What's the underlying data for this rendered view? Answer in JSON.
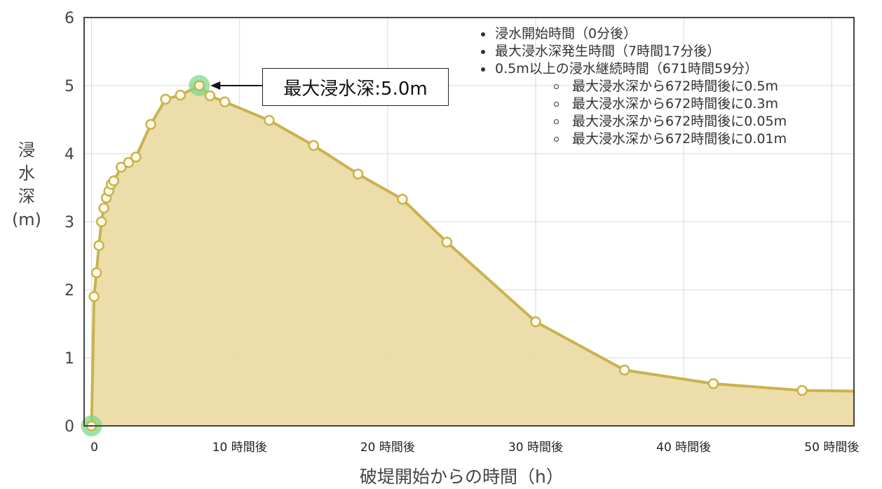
{
  "chart_data": {
    "type": "area",
    "xlabel": "破堤開始からの時間（h）",
    "ylabel": "浸水深(m)",
    "ylabel_lines": [
      "浸",
      "水",
      "深",
      "(m)"
    ],
    "xlim": [
      -0.5,
      51.5
    ],
    "ylim": [
      0,
      6
    ],
    "x_ticks": [
      {
        "value": 0,
        "label": "0"
      },
      {
        "value": 10,
        "label": "10 時間後"
      },
      {
        "value": 20,
        "label": "20 時間後"
      },
      {
        "value": 30,
        "label": "30 時間後"
      },
      {
        "value": 40,
        "label": "40 時間後"
      },
      {
        "value": 50,
        "label": "50 時間後"
      }
    ],
    "y_ticks": [
      0,
      1,
      2,
      3,
      4,
      5,
      6
    ],
    "grid": true,
    "series": [
      {
        "color": "#c9b34e",
        "fill": "#ecdba6",
        "points": [
          [
            0,
            0
          ],
          [
            0.17,
            1.9
          ],
          [
            0.33,
            2.25
          ],
          [
            0.5,
            2.65
          ],
          [
            0.67,
            3.0
          ],
          [
            0.83,
            3.2
          ],
          [
            1.0,
            3.35
          ],
          [
            1.17,
            3.45
          ],
          [
            1.33,
            3.55
          ],
          [
            1.5,
            3.6
          ],
          [
            2.0,
            3.8
          ],
          [
            2.5,
            3.87
          ],
          [
            3.0,
            3.95
          ],
          [
            4.0,
            4.43
          ],
          [
            5.0,
            4.8
          ],
          [
            6.0,
            4.86
          ],
          [
            7.28,
            5.0
          ],
          [
            8.0,
            4.85
          ],
          [
            9.0,
            4.76
          ],
          [
            12.0,
            4.49
          ],
          [
            15.0,
            4.12
          ],
          [
            18.0,
            3.7
          ],
          [
            21.0,
            3.33
          ],
          [
            24.0,
            2.7
          ],
          [
            30.0,
            1.53
          ],
          [
            36.0,
            0.82
          ],
          [
            42.0,
            0.62
          ],
          [
            48.0,
            0.52
          ],
          [
            51.5,
            0.51
          ]
        ],
        "highlight_points": [
          [
            0,
            0
          ],
          [
            7.28,
            5.0
          ]
        ],
        "highlight_color": "#7ed98a"
      }
    ],
    "annotation": {
      "text": "最大浸水深:5.0m",
      "x": 7.28,
      "y": 5.0
    },
    "legend": {
      "position": "top-right",
      "items": [
        {
          "level": 1,
          "text": "浸水開始時間（0分後）"
        },
        {
          "level": 1,
          "text": "最大浸水深発生時間（7時間17分後）"
        },
        {
          "level": 1,
          "text": "0.5m以上の浸水継続時間（671時間59分）"
        },
        {
          "level": 2,
          "text": "最大浸水深から672時間後に0.5m"
        },
        {
          "level": 2,
          "text": "最大浸水深から672時間後に0.3m"
        },
        {
          "level": 2,
          "text": "最大浸水深から672時間後に0.05m"
        },
        {
          "level": 2,
          "text": "最大浸水深から672時間後に0.01m"
        }
      ]
    }
  }
}
